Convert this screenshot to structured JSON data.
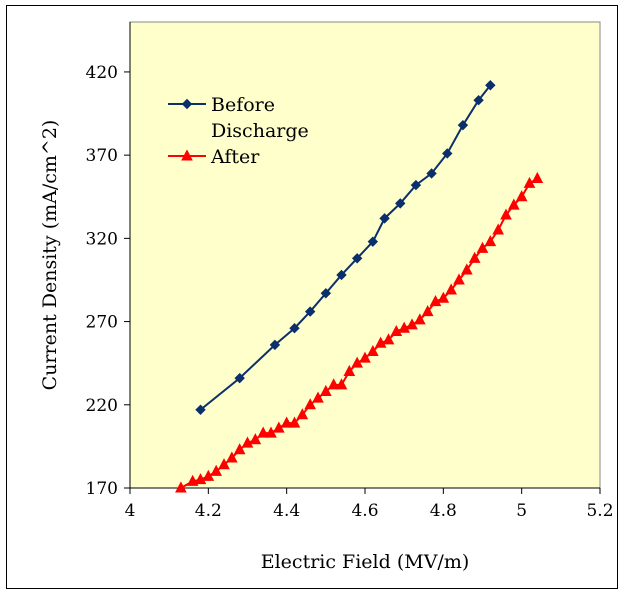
{
  "chart_data": {
    "type": "line",
    "title": "",
    "xlabel": "Electric Field (MV/m)",
    "ylabel": "Current Density (mA/cm^2)",
    "xlim": [
      4,
      5.2
    ],
    "ylim": [
      170,
      450
    ],
    "xticks": [
      "4",
      "4.2",
      "4.4",
      "4.6",
      "4.8",
      "5",
      "5.2"
    ],
    "xtick_values": [
      4,
      4.2,
      4.4,
      4.6,
      4.8,
      5,
      5.2
    ],
    "yticks": [
      "170",
      "220",
      "270",
      "320",
      "370",
      "420"
    ],
    "ytick_values": [
      170,
      220,
      270,
      320,
      370,
      420
    ],
    "grid": false,
    "legend_position": "top-left",
    "plot_background": "#ffffcc",
    "series": [
      {
        "name": "Before Discharge",
        "legend_lines": [
          "Before",
          "Discharge"
        ],
        "color": "#0b2f6b",
        "marker": "diamond",
        "x": [
          4.18,
          4.28,
          4.37,
          4.42,
          4.46,
          4.5,
          4.54,
          4.58,
          4.62,
          4.65,
          4.69,
          4.73,
          4.77,
          4.81,
          4.85,
          4.89,
          4.92
        ],
        "y": [
          217,
          236,
          256,
          266,
          276,
          287,
          298,
          308,
          318,
          332,
          341,
          352,
          359,
          371,
          388,
          403,
          412
        ]
      },
      {
        "name": "After",
        "legend_lines": [
          "After"
        ],
        "color": "#ff0000",
        "marker": "triangle",
        "x": [
          4.13,
          4.16,
          4.18,
          4.2,
          4.22,
          4.24,
          4.26,
          4.28,
          4.3,
          4.32,
          4.34,
          4.36,
          4.38,
          4.4,
          4.42,
          4.44,
          4.46,
          4.48,
          4.5,
          4.52,
          4.54,
          4.56,
          4.58,
          4.6,
          4.62,
          4.64,
          4.66,
          4.68,
          4.7,
          4.72,
          4.74,
          4.76,
          4.78,
          4.8,
          4.82,
          4.84,
          4.86,
          4.88,
          4.9,
          4.92,
          4.94,
          4.96,
          4.98,
          5.0,
          5.02,
          5.04
        ],
        "y": [
          170,
          174,
          175,
          177,
          180,
          184,
          188,
          193,
          197,
          199,
          203,
          203,
          206,
          209,
          209,
          214,
          220,
          224,
          228,
          232,
          232,
          240,
          245,
          248,
          252,
          257,
          259,
          264,
          266,
          268,
          271,
          276,
          282,
          284,
          289,
          295,
          301,
          308,
          314,
          318,
          325,
          334,
          340,
          345,
          353,
          356
        ]
      }
    ]
  }
}
